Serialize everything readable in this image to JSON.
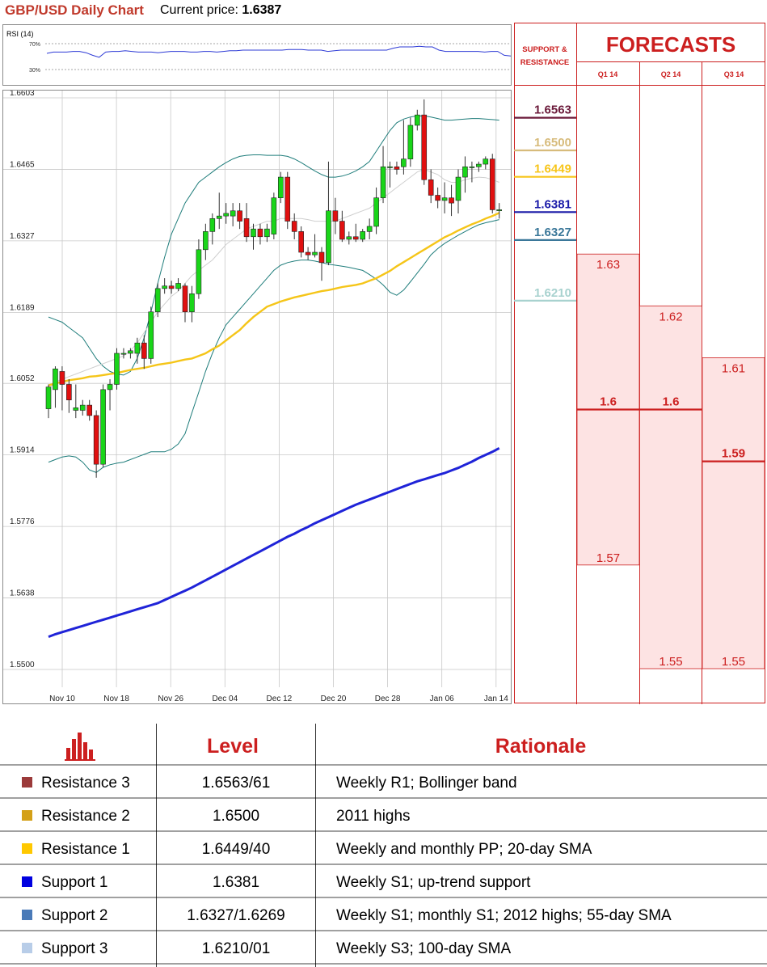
{
  "header": {
    "title": "GBP/USD Daily Chart",
    "price_label": "Current price:",
    "price_value": "1.6387"
  },
  "rsi": {
    "label": "RSI (14)",
    "levels": [
      "70%",
      "30%"
    ],
    "values": [
      55,
      57,
      57,
      57,
      58,
      58,
      56,
      52,
      49,
      57,
      58,
      58,
      59,
      58,
      57,
      57,
      57,
      56,
      57,
      58,
      58,
      58,
      57,
      57,
      58,
      58,
      57,
      58,
      59,
      59,
      60,
      60,
      60,
      60,
      60,
      60,
      60,
      61,
      61,
      61,
      60,
      60,
      60,
      58,
      59,
      60,
      60,
      60,
      60,
      60,
      60,
      60,
      60,
      63,
      65,
      65,
      65,
      66,
      65,
      65,
      60,
      58,
      58,
      58,
      58,
      58,
      58,
      57,
      58,
      58,
      52,
      51
    ]
  },
  "chart_data": {
    "type": "candlestick",
    "title": "GBP/USD Daily Chart",
    "ylim": [
      1.55,
      1.6603
    ],
    "y_ticks": [
      "1.6603",
      "1.6465",
      "1.6327",
      "1.6189",
      "1.6052",
      "1.5914",
      "1.5776",
      "1.5638",
      "1.5500"
    ],
    "x_ticks": [
      "Nov 10",
      "Nov 18",
      "Nov 26",
      "Dec 04",
      "Dec 12",
      "Dec 20",
      "Dec 28",
      "Jan 06",
      "Jan 14"
    ],
    "candles": [
      {
        "o": 1.6003,
        "h": 1.605,
        "l": 1.5985,
        "c": 1.6045
      },
      {
        "o": 1.604,
        "h": 1.6085,
        "l": 1.6005,
        "c": 1.608
      },
      {
        "o": 1.6075,
        "h": 1.6085,
        "l": 1.6,
        "c": 1.605
      },
      {
        "o": 1.605,
        "h": 1.606,
        "l": 1.5995,
        "c": 1.602
      },
      {
        "o": 1.6,
        "h": 1.605,
        "l": 1.5985,
        "c": 1.6005
      },
      {
        "o": 1.6,
        "h": 1.602,
        "l": 1.599,
        "c": 1.601
      },
      {
        "o": 1.601,
        "h": 1.602,
        "l": 1.598,
        "c": 1.599
      },
      {
        "o": 1.599,
        "h": 1.6,
        "l": 1.587,
        "c": 1.5896
      },
      {
        "o": 1.5896,
        "h": 1.605,
        "l": 1.589,
        "c": 1.604
      },
      {
        "o": 1.604,
        "h": 1.606,
        "l": 1.6,
        "c": 1.605
      },
      {
        "o": 1.605,
        "h": 1.612,
        "l": 1.604,
        "c": 1.611
      },
      {
        "o": 1.611,
        "h": 1.612,
        "l": 1.61,
        "c": 1.611
      },
      {
        "o": 1.611,
        "h": 1.612,
        "l": 1.61,
        "c": 1.6115
      },
      {
        "o": 1.611,
        "h": 1.614,
        "l": 1.609,
        "c": 1.613
      },
      {
        "o": 1.613,
        "h": 1.6145,
        "l": 1.608,
        "c": 1.61
      },
      {
        "o": 1.61,
        "h": 1.62,
        "l": 1.609,
        "c": 1.619
      },
      {
        "o": 1.619,
        "h": 1.6245,
        "l": 1.618,
        "c": 1.6235
      },
      {
        "o": 1.6235,
        "h": 1.6255,
        "l": 1.6225,
        "c": 1.624
      },
      {
        "o": 1.624,
        "h": 1.625,
        "l": 1.6225,
        "c": 1.6235
      },
      {
        "o": 1.6235,
        "h": 1.6255,
        "l": 1.623,
        "c": 1.6245
      },
      {
        "o": 1.624,
        "h": 1.6245,
        "l": 1.617,
        "c": 1.619
      },
      {
        "o": 1.619,
        "h": 1.624,
        "l": 1.617,
        "c": 1.6225
      },
      {
        "o": 1.6225,
        "h": 1.633,
        "l": 1.6215,
        "c": 1.631
      },
      {
        "o": 1.631,
        "h": 1.636,
        "l": 1.629,
        "c": 1.6345
      },
      {
        "o": 1.6345,
        "h": 1.638,
        "l": 1.632,
        "c": 1.637
      },
      {
        "o": 1.637,
        "h": 1.642,
        "l": 1.635,
        "c": 1.6375
      },
      {
        "o": 1.6375,
        "h": 1.64,
        "l": 1.636,
        "c": 1.638
      },
      {
        "o": 1.6375,
        "h": 1.64,
        "l": 1.6355,
        "c": 1.6385
      },
      {
        "o": 1.6385,
        "h": 1.64,
        "l": 1.635,
        "c": 1.6365
      },
      {
        "o": 1.637,
        "h": 1.64,
        "l": 1.6325,
        "c": 1.6335
      },
      {
        "o": 1.6335,
        "h": 1.636,
        "l": 1.631,
        "c": 1.635
      },
      {
        "o": 1.635,
        "h": 1.636,
        "l": 1.632,
        "c": 1.6335
      },
      {
        "o": 1.6335,
        "h": 1.636,
        "l": 1.6325,
        "c": 1.635
      },
      {
        "o": 1.634,
        "h": 1.642,
        "l": 1.633,
        "c": 1.641
      },
      {
        "o": 1.641,
        "h": 1.646,
        "l": 1.64,
        "c": 1.645
      },
      {
        "o": 1.645,
        "h": 1.646,
        "l": 1.635,
        "c": 1.6365
      },
      {
        "o": 1.6365,
        "h": 1.638,
        "l": 1.633,
        "c": 1.6345
      },
      {
        "o": 1.6345,
        "h": 1.6355,
        "l": 1.6295,
        "c": 1.6305
      },
      {
        "o": 1.6305,
        "h": 1.6315,
        "l": 1.629,
        "c": 1.63
      },
      {
        "o": 1.63,
        "h": 1.634,
        "l": 1.6295,
        "c": 1.6305
      },
      {
        "o": 1.6305,
        "h": 1.6315,
        "l": 1.625,
        "c": 1.6285
      },
      {
        "o": 1.6285,
        "h": 1.648,
        "l": 1.628,
        "c": 1.6385
      },
      {
        "o": 1.6385,
        "h": 1.641,
        "l": 1.634,
        "c": 1.6365
      },
      {
        "o": 1.6365,
        "h": 1.6385,
        "l": 1.6325,
        "c": 1.633
      },
      {
        "o": 1.633,
        "h": 1.6345,
        "l": 1.632,
        "c": 1.6335
      },
      {
        "o": 1.6335,
        "h": 1.636,
        "l": 1.6325,
        "c": 1.633
      },
      {
        "o": 1.633,
        "h": 1.635,
        "l": 1.6325,
        "c": 1.6345
      },
      {
        "o": 1.6345,
        "h": 1.637,
        "l": 1.633,
        "c": 1.6355
      },
      {
        "o": 1.6355,
        "h": 1.643,
        "l": 1.634,
        "c": 1.641
      },
      {
        "o": 1.641,
        "h": 1.651,
        "l": 1.64,
        "c": 1.647
      },
      {
        "o": 1.647,
        "h": 1.648,
        "l": 1.643,
        "c": 1.647
      },
      {
        "o": 1.647,
        "h": 1.648,
        "l": 1.6455,
        "c": 1.6465
      },
      {
        "o": 1.647,
        "h": 1.656,
        "l": 1.6455,
        "c": 1.6485
      },
      {
        "o": 1.6485,
        "h": 1.6565,
        "l": 1.647,
        "c": 1.655
      },
      {
        "o": 1.655,
        "h": 1.658,
        "l": 1.654,
        "c": 1.657
      },
      {
        "o": 1.657,
        "h": 1.66,
        "l": 1.6435,
        "c": 1.6445
      },
      {
        "o": 1.6445,
        "h": 1.6465,
        "l": 1.64,
        "c": 1.6415
      },
      {
        "o": 1.6415,
        "h": 1.643,
        "l": 1.639,
        "c": 1.6405
      },
      {
        "o": 1.6405,
        "h": 1.644,
        "l": 1.638,
        "c": 1.641
      },
      {
        "o": 1.641,
        "h": 1.6435,
        "l": 1.6375,
        "c": 1.64
      },
      {
        "o": 1.6405,
        "h": 1.6465,
        "l": 1.638,
        "c": 1.645
      },
      {
        "o": 1.645,
        "h": 1.649,
        "l": 1.642,
        "c": 1.647
      },
      {
        "o": 1.647,
        "h": 1.648,
        "l": 1.644,
        "c": 1.647
      },
      {
        "o": 1.647,
        "h": 1.648,
        "l": 1.646,
        "c": 1.6475
      },
      {
        "o": 1.6475,
        "h": 1.649,
        "l": 1.6465,
        "c": 1.6485
      },
      {
        "o": 1.6485,
        "h": 1.6495,
        "l": 1.638,
        "c": 1.6387
      },
      {
        "o": 1.6387,
        "h": 1.64,
        "l": 1.637,
        "c": 1.6387
      }
    ],
    "sma20": [
      1.604,
      1.6055,
      1.606,
      1.6065,
      1.607,
      1.6075,
      1.608,
      1.6085,
      1.609,
      1.6095,
      1.61,
      1.6105,
      1.6115,
      1.613,
      1.615,
      1.617,
      1.619,
      1.6205,
      1.622,
      1.623,
      1.6245,
      1.626,
      1.627,
      1.628,
      1.629,
      1.6305,
      1.632,
      1.633,
      1.634,
      1.635,
      1.6355,
      1.636,
      1.6365,
      1.6365,
      1.637,
      1.637,
      1.637,
      1.637,
      1.6368,
      1.6365,
      1.6365,
      1.6365,
      1.6365,
      1.637,
      1.6375,
      1.638,
      1.6385,
      1.639,
      1.64,
      1.641,
      1.642,
      1.643,
      1.644,
      1.645,
      1.646,
      1.6465,
      1.646,
      1.6455,
      1.6445,
      1.644,
      1.644,
      1.6445,
      1.6448,
      1.645,
      1.6449,
      1.6445,
      1.644
    ],
    "sma55": [
      1.6048,
      1.6052,
      1.6055,
      1.6058,
      1.606,
      1.6062,
      1.6065,
      1.6066,
      1.6068,
      1.607,
      1.6072,
      1.6075,
      1.6078,
      1.608,
      1.6082,
      1.6085,
      1.6088,
      1.609,
      1.6092,
      1.6095,
      1.6098,
      1.61,
      1.6105,
      1.611,
      1.6118,
      1.6125,
      1.6135,
      1.6145,
      1.6155,
      1.6168,
      1.618,
      1.619,
      1.62,
      1.6205,
      1.621,
      1.6214,
      1.6218,
      1.6221,
      1.6224,
      1.6227,
      1.623,
      1.6232,
      1.6235,
      1.6238,
      1.624,
      1.6242,
      1.6245,
      1.625,
      1.6255,
      1.6262,
      1.6269,
      1.6278,
      1.6286,
      1.6294,
      1.6302,
      1.631,
      1.6318,
      1.6326,
      1.6334,
      1.634,
      1.6347,
      1.6353,
      1.6359,
      1.6364,
      1.637,
      1.6375,
      1.6381
    ],
    "sma100": [
      1.5563,
      1.5568,
      1.5572,
      1.5576,
      1.558,
      1.5584,
      1.5588,
      1.5592,
      1.5596,
      1.56,
      1.5604,
      1.5608,
      1.5612,
      1.5616,
      1.562,
      1.5624,
      1.5628,
      1.5634,
      1.564,
      1.5646,
      1.5652,
      1.5658,
      1.5665,
      1.5672,
      1.5679,
      1.5686,
      1.5693,
      1.57,
      1.5707,
      1.5714,
      1.5721,
      1.5728,
      1.5735,
      1.5742,
      1.5749,
      1.5756,
      1.5762,
      1.5769,
      1.5775,
      1.5782,
      1.5788,
      1.5794,
      1.58,
      1.5806,
      1.5812,
      1.5818,
      1.5823,
      1.5828,
      1.5833,
      1.5838,
      1.5843,
      1.5848,
      1.5853,
      1.5858,
      1.5863,
      1.5867,
      1.5871,
      1.5875,
      1.5879,
      1.5884,
      1.5889,
      1.5895,
      1.5901,
      1.5908,
      1.5914,
      1.592,
      1.5927
    ],
    "bb_upper": [
      1.618,
      1.6175,
      1.617,
      1.616,
      1.615,
      1.614,
      1.612,
      1.61,
      1.6085,
      1.6075,
      1.607,
      1.6068,
      1.6075,
      1.61,
      1.614,
      1.619,
      1.6245,
      1.6295,
      1.634,
      1.637,
      1.64,
      1.642,
      1.644,
      1.645,
      1.646,
      1.647,
      1.6478,
      1.6485,
      1.649,
      1.6492,
      1.6493,
      1.6493,
      1.6492,
      1.6492,
      1.6492,
      1.649,
      1.6485,
      1.6478,
      1.647,
      1.6462,
      1.6455,
      1.645,
      1.645,
      1.6452,
      1.6456,
      1.6462,
      1.647,
      1.648,
      1.65,
      1.652,
      1.654,
      1.6555,
      1.6562,
      1.6566,
      1.6568,
      1.6568,
      1.6566,
      1.6563,
      1.656,
      1.656,
      1.6561,
      1.6562,
      1.6563,
      1.6563,
      1.6562,
      1.6561,
      1.656
    ],
    "bb_lower": [
      1.59,
      1.5905,
      1.591,
      1.5912,
      1.591,
      1.59,
      1.5885,
      1.588,
      1.589,
      1.5895,
      1.5898,
      1.59,
      1.5905,
      1.591,
      1.5915,
      1.592,
      1.592,
      1.592,
      1.5925,
      1.5935,
      1.5955,
      1.5995,
      1.6035,
      1.6075,
      1.611,
      1.614,
      1.6165,
      1.618,
      1.6195,
      1.621,
      1.6225,
      1.624,
      1.6255,
      1.627,
      1.628,
      1.6285,
      1.6288,
      1.629,
      1.629,
      1.6288,
      1.6285,
      1.6282,
      1.628,
      1.6278,
      1.6276,
      1.6273,
      1.627,
      1.6262,
      1.6253,
      1.6242,
      1.6228,
      1.6222,
      1.6232,
      1.6248,
      1.6265,
      1.6282,
      1.63,
      1.6312,
      1.6322,
      1.633,
      1.6338,
      1.6345,
      1.6352,
      1.6358,
      1.6362,
      1.6365,
      1.6368
    ]
  },
  "sr_panel": {
    "title": "SUPPORT & RESISTANCE",
    "levels": [
      {
        "label": "1.6563",
        "value": 1.6563,
        "color": "#6b1a3a"
      },
      {
        "label": "1.6500",
        "value": 1.65,
        "color": "#d7bb7b"
      },
      {
        "label": "1.6449",
        "value": 1.6449,
        "color": "#f7c51a"
      },
      {
        "label": "1.6381",
        "value": 1.6381,
        "color": "#1a1aa8"
      },
      {
        "label": "1.6327",
        "value": 1.6327,
        "color": "#3a7799"
      },
      {
        "label": "1.6210",
        "value": 1.621,
        "color": "#a8d2cf"
      }
    ]
  },
  "forecasts": {
    "title": "FORECASTS",
    "columns": [
      {
        "quarter": "Q1 14",
        "high": "1.63",
        "median": "1.6",
        "low": "1.57",
        "high_v": 1.63,
        "median_v": 1.6,
        "low_v": 1.57
      },
      {
        "quarter": "Q2 14",
        "high": "1.62",
        "median": "1.6",
        "low": "1.55",
        "high_v": 1.62,
        "median_v": 1.6,
        "low_v": 1.55
      },
      {
        "quarter": "Q3 14",
        "high": "1.61",
        "median": "1.59",
        "low": "1.55",
        "high_v": 1.61,
        "median_v": 1.59,
        "low_v": 1.55
      }
    ]
  },
  "table": {
    "icon": "bar-chart-icon",
    "headers": [
      "Level",
      "Rationale"
    ],
    "rows": [
      {
        "name": "Resistance 3",
        "value": "1.6563/61",
        "rationale": "Weekly R1; Bollinger band",
        "color": "#9b3a3a"
      },
      {
        "name": "Resistance 2",
        "value": "1.6500",
        "rationale": "2011 highs",
        "color": "#d4a017"
      },
      {
        "name": "Resistance 1",
        "value": "1.6449/40",
        "rationale": "Weekly and monthly PP; 20-day SMA",
        "color": "#ffc800"
      },
      {
        "name": "Support 1",
        "value": "1.6381",
        "rationale": "Weekly S1; up-trend support",
        "color": "#0000e0"
      },
      {
        "name": "Support 2",
        "value": "1.6327/1.6269",
        "rationale": "Weekly S1; monthly S1; 2012 highs; 55-day SMA",
        "color": "#4a7ab8"
      },
      {
        "name": "Support 3",
        "value": "1.6210/01",
        "rationale": "Weekly S3; 100-day SMA",
        "color": "#b8cde8"
      }
    ]
  },
  "colors": {
    "accent_red": "#cc1f1f",
    "bull_candle": "#19d519",
    "bear_candle": "#e01010"
  }
}
